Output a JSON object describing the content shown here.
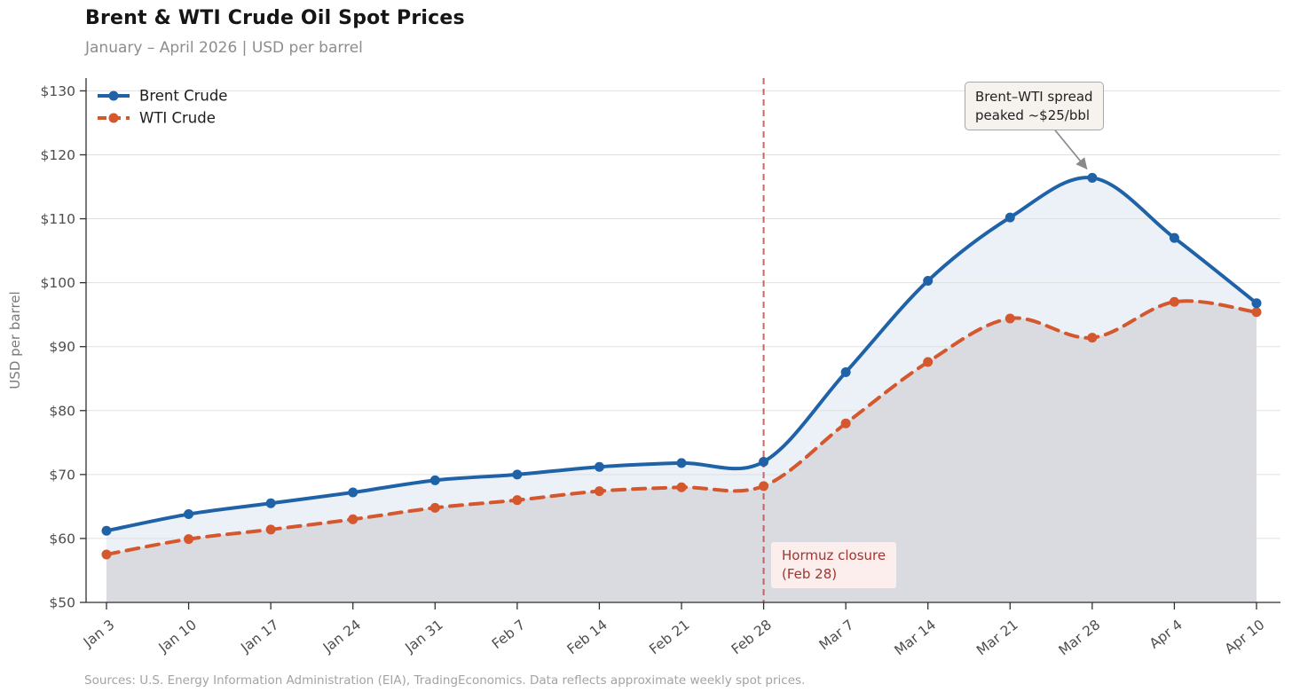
{
  "chart_data": {
    "type": "line",
    "title": "Brent & WTI Crude Oil Spot Prices",
    "subtitle": "January – April 2026  |  USD per barrel",
    "ylabel": "USD per barrel",
    "source": "Sources: U.S. Energy Information Administration (EIA), TradingEconomics. Data reflects approximate weekly spot prices.",
    "categories": [
      "Jan 3",
      "Jan 10",
      "Jan 17",
      "Jan 24",
      "Jan 31",
      "Feb 7",
      "Feb 14",
      "Feb 21",
      "Feb 28",
      "Mar 7",
      "Mar 14",
      "Mar 21",
      "Mar 28",
      "Apr 4",
      "Apr 10"
    ],
    "series": [
      {
        "name": "Brent Crude",
        "color": "#1f62a8",
        "fill": "rgba(31,98,168,0.09)",
        "line_style": "solid",
        "values": [
          61.2,
          63.8,
          65.5,
          67.2,
          69.1,
          70.0,
          71.2,
          71.8,
          72.0,
          86.0,
          100.3,
          110.2,
          116.4,
          107.0,
          96.8
        ]
      },
      {
        "name": "WTI Crude",
        "color": "#d4572e",
        "fill": "rgba(115,85,85,0.14)",
        "line_style": "dashed",
        "values": [
          57.5,
          59.9,
          61.4,
          63.0,
          64.8,
          66.0,
          67.4,
          68.0,
          68.2,
          78.0,
          87.6,
          94.4,
          91.4,
          97.0,
          95.4
        ]
      }
    ],
    "ylim": [
      50,
      132
    ],
    "yticks": [
      50,
      60,
      70,
      80,
      90,
      100,
      110,
      120,
      130
    ],
    "ytick_prefix": "$",
    "grid": "horizontal",
    "legend_position": "top-left",
    "tick_color": "#4d4d4d",
    "axis_color": "#2f2f2f",
    "grid_color": "#dedede",
    "annotations": [
      {
        "id": "hormuz",
        "type": "vline",
        "category": "Feb 28",
        "line1": "Hormuz closure",
        "line2": "(Feb 28)",
        "color": "#b5544c"
      },
      {
        "id": "spread-peak",
        "type": "callout",
        "target_series": "Brent Crude",
        "target_category": "Mar 28",
        "line1": "Brent–WTI spread",
        "line2": "peaked ~$25/bbl",
        "arrow_color": "#8a8a8a"
      }
    ]
  }
}
